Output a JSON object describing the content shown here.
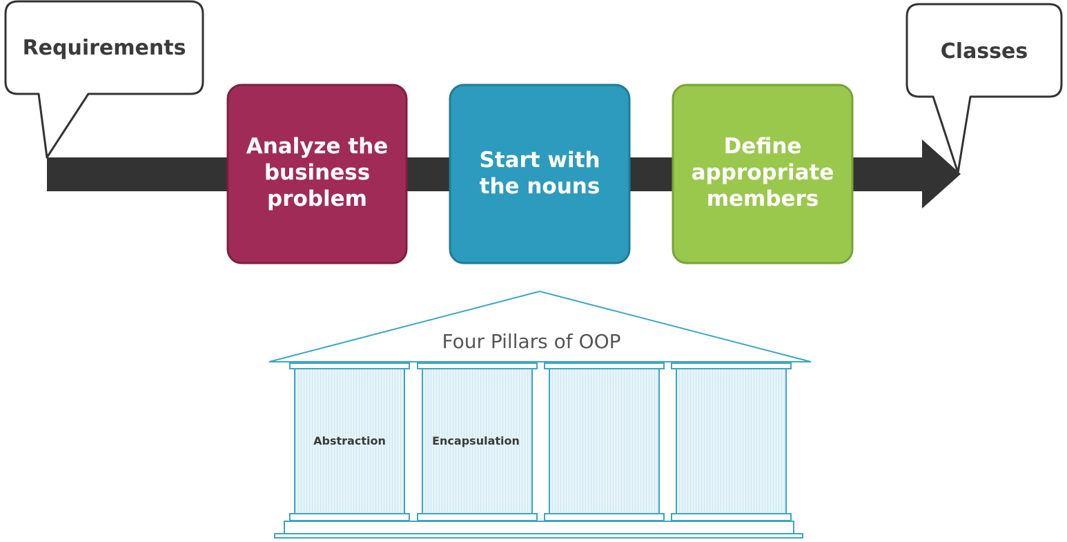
{
  "start_callout": {
    "label": "Requirements"
  },
  "end_callout": {
    "label": "Classes"
  },
  "steps": [
    {
      "lines": [
        "Analyze the",
        "business",
        "problem"
      ],
      "color": "#a12b57"
    },
    {
      "lines": [
        "Start with",
        "the nouns"
      ],
      "color": "#2d9bbd"
    },
    {
      "lines": [
        "Define",
        "appropriate",
        "members"
      ],
      "color": "#9ac84d"
    }
  ],
  "arrow_color": "#333333",
  "temple": {
    "title": "Four Pillars of OOP",
    "line_color": "#3aa6c4",
    "pillar_fill": "#e3f3f9",
    "pillars": [
      {
        "label": "Abstraction"
      },
      {
        "label": "Encapsulation"
      },
      {
        "label": ""
      },
      {
        "label": ""
      }
    ]
  }
}
